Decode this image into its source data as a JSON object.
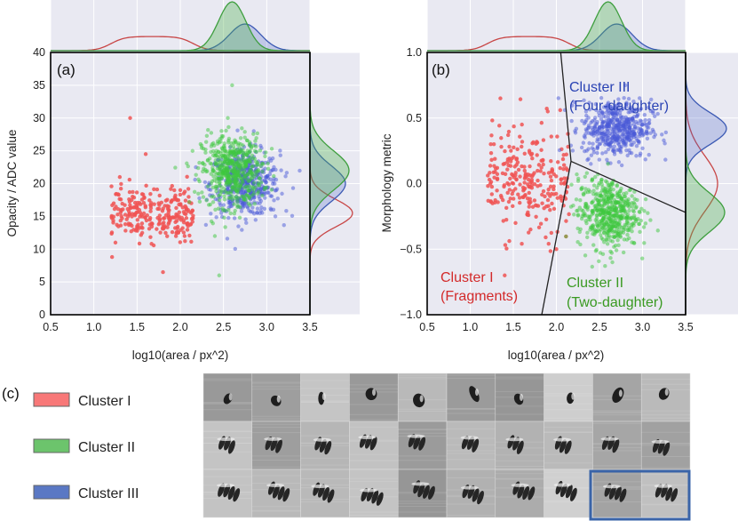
{
  "chart_data": [
    {
      "type": "scatter",
      "panel_label": "(a)",
      "xlabel": "log10(area / px^2)",
      "ylabel": "Opacity / ADC value",
      "xlim": [
        0.5,
        3.5
      ],
      "ylim": [
        0,
        40
      ],
      "xticks": [
        "0.5",
        "1.0",
        "1.5",
        "2.0",
        "2.5",
        "3.0",
        "3.5"
      ],
      "yticks": [
        "0",
        "5",
        "10",
        "15",
        "20",
        "25",
        "30",
        "35",
        "40"
      ],
      "marginals": "kde-top-and-right",
      "series": [
        {
          "cluster": "I",
          "color": "#f05454",
          "x_range": [
            1.2,
            2.15
          ],
          "y_center": 15.5,
          "y_spread": 3.5,
          "points_sample": [
            [
              1.42,
              30
            ],
            [
              1.6,
              24.5
            ],
            [
              1.3,
              21
            ],
            [
              1.75,
              17
            ],
            [
              2.05,
              12
            ],
            [
              1.5,
              13.5
            ],
            [
              1.8,
              6.5
            ],
            [
              2.0,
              19
            ],
            [
              1.25,
              11
            ]
          ]
        },
        {
          "cluster": "II",
          "color": "#3ec83e",
          "x_range": [
            2.25,
            2.95
          ],
          "y_center": 22,
          "y_spread": 5,
          "points_sample": [
            [
              2.6,
              35
            ],
            [
              2.55,
              30
            ],
            [
              2.5,
              22
            ],
            [
              2.4,
              12
            ],
            [
              2.65,
              18
            ],
            [
              2.45,
              6
            ],
            [
              2.7,
              26
            ]
          ]
        },
        {
          "cluster": "III",
          "color": "#4a5ad8",
          "x_range": [
            2.35,
            3.15
          ],
          "y_center": 20,
          "y_spread": 4.5,
          "points_sample": [
            [
              2.8,
              22
            ],
            [
              2.9,
              19
            ],
            [
              3.05,
              16
            ],
            [
              2.7,
              25
            ],
            [
              2.85,
              28
            ],
            [
              3.1,
              15
            ]
          ]
        }
      ]
    },
    {
      "type": "scatter",
      "panel_label": "(b)",
      "xlabel": "log10(area / px^2)",
      "ylabel": "Morphology metric",
      "xlim": [
        0.5,
        3.5
      ],
      "ylim": [
        -1.0,
        1.0
      ],
      "xticks": [
        "0.5",
        "1.0",
        "1.5",
        "2.0",
        "2.5",
        "3.0",
        "3.5"
      ],
      "yticks": [
        "−1.0",
        "−0.5",
        "0.0",
        "0.5",
        "1.0"
      ],
      "marginals": "kde-top-and-right",
      "boundaries": [
        {
          "from": [
            2.05,
            1.0
          ],
          "to": [
            2.17,
            0.17
          ]
        },
        {
          "from": [
            2.17,
            0.17
          ],
          "to": [
            3.5,
            -0.22
          ]
        },
        {
          "from": [
            2.17,
            0.17
          ],
          "to": [
            1.83,
            -1.0
          ]
        }
      ],
      "annotations": [
        {
          "text_lines": [
            "Cluster III",
            "(Four-daughter)"
          ],
          "color": "#2a43b4"
        },
        {
          "text_lines": [
            "Cluster I",
            "(Fragments)"
          ],
          "color": "#d32a2a"
        },
        {
          "text_lines": [
            "Cluster II",
            "(Two-daughter)"
          ],
          "color": "#3a9a22"
        }
      ],
      "series": [
        {
          "cluster": "I",
          "color": "#f05454",
          "x_range": [
            1.2,
            2.15
          ],
          "y_center": 0.0,
          "y_spread": 0.35,
          "points_sample": [
            [
              1.35,
              0.65
            ],
            [
              1.6,
              0.45
            ],
            [
              1.9,
              0.55
            ],
            [
              1.5,
              0.0
            ],
            [
              1.7,
              -0.35
            ],
            [
              2.0,
              -0.5
            ],
            [
              1.4,
              -0.7
            ]
          ]
        },
        {
          "cluster": "II",
          "color": "#3ec83e",
          "x_range": [
            2.25,
            2.95
          ],
          "y_center": -0.22,
          "y_spread": 0.25,
          "points_sample": [
            [
              2.6,
              0.15
            ],
            [
              2.5,
              -0.2
            ],
            [
              2.65,
              -0.6
            ],
            [
              2.7,
              -0.3
            ],
            [
              2.45,
              0.05
            ]
          ]
        },
        {
          "cluster": "III",
          "color": "#4a5ad8",
          "x_range": [
            2.3,
            3.1
          ],
          "y_center": 0.42,
          "y_spread": 0.2,
          "points_sample": [
            [
              2.8,
              0.75
            ],
            [
              2.5,
              0.3
            ],
            [
              2.9,
              0.55
            ],
            [
              2.4,
              0.15
            ],
            [
              3.0,
              0.45
            ]
          ]
        }
      ]
    }
  ],
  "panel_c": {
    "label": "(c)",
    "legend": [
      {
        "name": "Cluster I",
        "color": "#f87878"
      },
      {
        "name": "Cluster II",
        "color": "#6cc46c"
      },
      {
        "name": "Cluster III",
        "color": "#5a78c4"
      }
    ],
    "rows": 3,
    "cols": 10,
    "highlight_color": "#3a64a8",
    "highlight_row": 3,
    "highlight_cols": [
      9,
      10
    ]
  }
}
